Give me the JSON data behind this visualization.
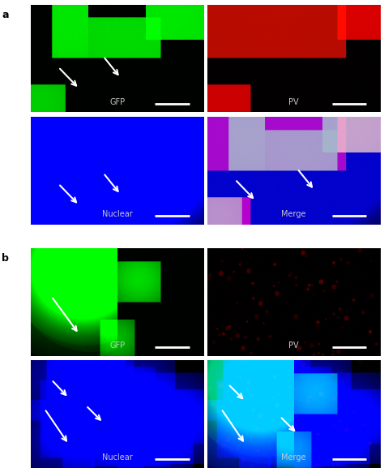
{
  "figure_width": 4.74,
  "figure_height": 5.77,
  "dpi": 100,
  "panel_a_label": "a",
  "panel_b_label": "b",
  "labels": [
    "GFP",
    "PV",
    "Nuclear",
    "Merge"
  ],
  "label_color": "#c8c8c8",
  "label_fontsize": 7,
  "panel_label_fontsize": 9,
  "arrow_color": "white",
  "scalebar_color": "white",
  "background_color": "#000000"
}
